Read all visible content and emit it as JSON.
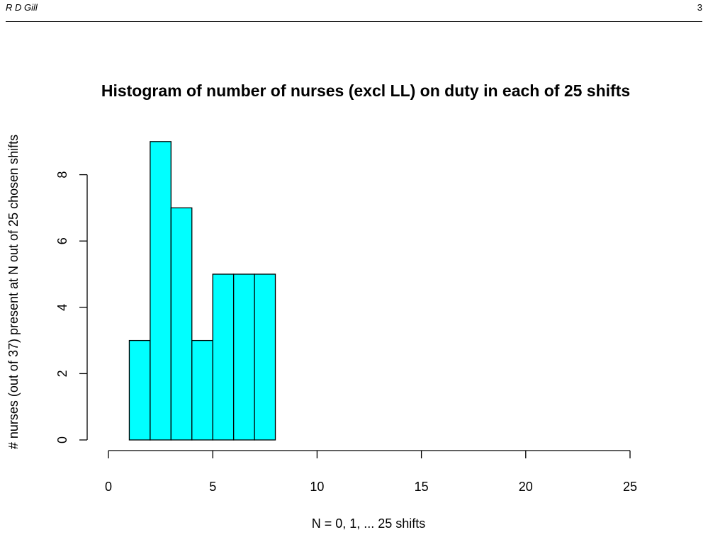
{
  "header": {
    "author": "R D Gill",
    "page_number": "3"
  },
  "chart_data": {
    "type": "bar",
    "title": "Histogram of number of nurses (excl LL) on duty in each of 25 shifts",
    "xlabel": "N = 0, 1, ... 25 shifts",
    "ylabel": "# nurses (out of 37) present at N out of 25 chosen shifts",
    "bins": [
      {
        "from": 1,
        "to": 2,
        "count": 3
      },
      {
        "from": 2,
        "to": 3,
        "count": 9
      },
      {
        "from": 3,
        "to": 4,
        "count": 7
      },
      {
        "from": 4,
        "to": 5,
        "count": 3
      },
      {
        "from": 5,
        "to": 6,
        "count": 5
      },
      {
        "from": 6,
        "to": 7,
        "count": 5
      },
      {
        "from": 7,
        "to": 8,
        "count": 5
      }
    ],
    "xlim": [
      0,
      25
    ],
    "ylim": [
      0,
      9
    ],
    "x_ticks": [
      0,
      5,
      10,
      15,
      20,
      25
    ],
    "y_ticks": [
      0,
      2,
      4,
      6,
      8
    ],
    "bar_color": "#00ffff",
    "bar_edge_color": "#000000",
    "grid": false,
    "legend": "none"
  }
}
